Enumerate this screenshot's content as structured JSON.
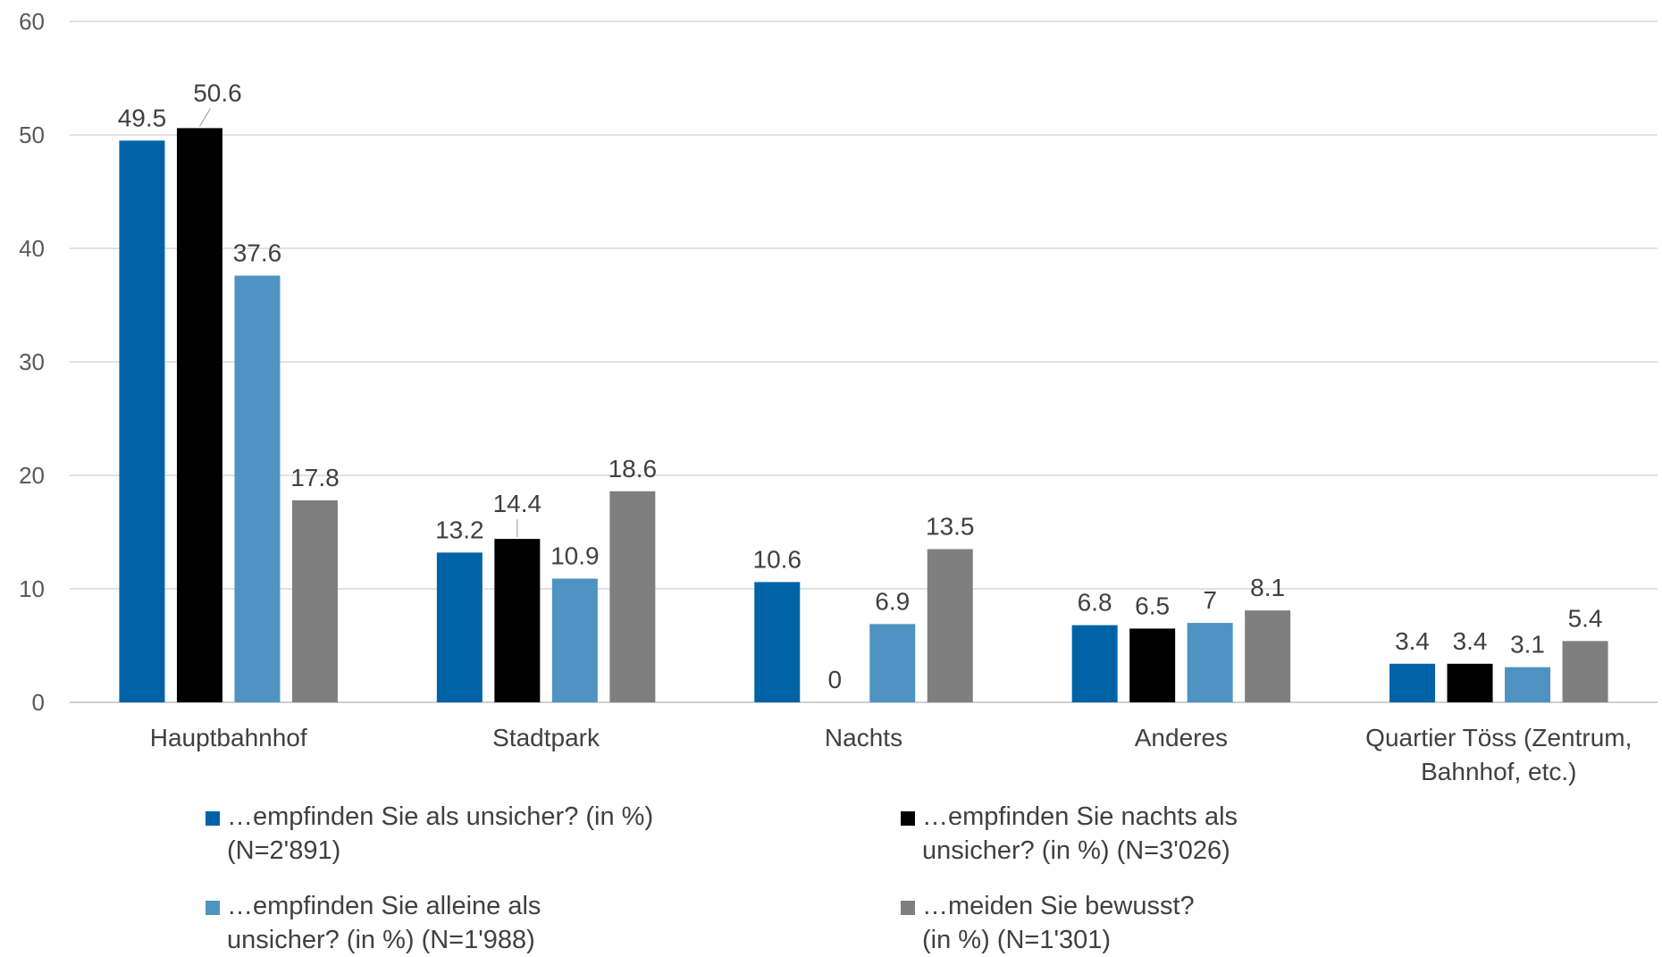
{
  "chart_data": {
    "type": "bar",
    "categories": [
      "Hauptbahnhof",
      "Stadtpark",
      "Nachts",
      "Anderes",
      "Quartier Töss (Zentrum, Bahnhof, etc.)"
    ],
    "series": [
      {
        "name": "…empfinden Sie als unsicher? (in %) (N=2'891)",
        "color": "#0063a8",
        "values": [
          49.5,
          13.2,
          10.6,
          6.8,
          3.4
        ]
      },
      {
        "name": "…empfinden Sie nachts als unsicher? (in %) (N=3'026)",
        "color": "#000000",
        "values": [
          50.6,
          14.4,
          0,
          6.5,
          3.4
        ]
      },
      {
        "name": "…empfinden Sie alleine als unsicher? (in %) (N=1'988)",
        "color": "#4e93c2",
        "values": [
          37.6,
          10.9,
          6.9,
          7,
          3.1
        ]
      },
      {
        "name": "…meiden Sie bewusst? (in %) (N=1'301)",
        "color": "#7f7f7f",
        "values": [
          17.8,
          18.6,
          13.5,
          8.1,
          5.4
        ]
      }
    ],
    "yticks": [
      "0",
      "10",
      "20",
      "30",
      "40",
      "50",
      "60"
    ],
    "ylim": [
      0,
      60
    ],
    "grid": true,
    "legend": "bottom",
    "title": "",
    "xlabel": "",
    "ylabel": ""
  }
}
